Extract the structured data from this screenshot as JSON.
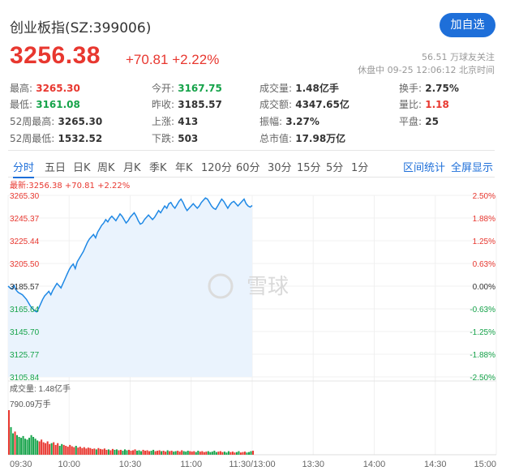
{
  "header": {
    "title": "创业板指(SZ:399006)",
    "add_label": "加自选",
    "price": "3256.38",
    "change": "+70.81 +2.22%",
    "followers": "56.51 万球友关注",
    "status": "休盘中 09-25 12:06:12 北京时间"
  },
  "stats": [
    {
      "label": "最高:",
      "value": "3265.30",
      "color": "red"
    },
    {
      "label": "今开:",
      "value": "3167.75",
      "color": "green"
    },
    {
      "label": "成交量:",
      "value": "1.48亿手",
      "color": "dark"
    },
    {
      "label": "换手:",
      "value": "2.75%",
      "color": "dark"
    },
    {
      "label": "最低:",
      "value": "3161.08",
      "color": "green"
    },
    {
      "label": "昨收:",
      "value": "3185.57",
      "color": "dark"
    },
    {
      "label": "成交额:",
      "value": "4347.65亿",
      "color": "dark"
    },
    {
      "label": "量比:",
      "value": "1.18",
      "color": "red"
    },
    {
      "label": "52周最高:",
      "value": "3265.30",
      "color": "dark"
    },
    {
      "label": "上涨:",
      "value": "413",
      "color": "dark"
    },
    {
      "label": "振幅:",
      "value": "3.27%",
      "color": "dark"
    },
    {
      "label": "平盘:",
      "value": "25",
      "color": "dark"
    },
    {
      "label": "52周最低:",
      "value": "1532.52",
      "color": "dark"
    },
    {
      "label": "下跌:",
      "value": "503",
      "color": "dark"
    },
    {
      "label": "总市值:",
      "value": "17.98万亿",
      "color": "dark"
    }
  ],
  "tabs": [
    "分时",
    "五日",
    "日K",
    "周K",
    "月K",
    "季K",
    "年K",
    "120分",
    "60分",
    "30分",
    "15分",
    "5分",
    "1分"
  ],
  "tab_actions": [
    "区间统计",
    "全屏显示"
  ],
  "chart_legend": "最新:3256.38 +70.81 +2.22%",
  "watermark": "雪球",
  "volume_label": "成交量: 1.48亿手",
  "volume_max": "790.09万手",
  "chart_data": {
    "type": "line",
    "y_ticks_left": [
      "3265.30",
      "3245.37",
      "3225.44",
      "3205.50",
      "3185.57",
      "3165.64",
      "3145.70",
      "3125.77",
      "3105.84"
    ],
    "y_ticks_right": [
      "2.50%",
      "1.88%",
      "1.25%",
      "0.63%",
      "0.00%",
      "-0.63%",
      "-1.25%",
      "-1.88%",
      "-2.50%"
    ],
    "x_ticks": [
      "09:30",
      "10:00",
      "10:30",
      "11:00",
      "11:30/13:00",
      "13:30",
      "14:00",
      "14:30",
      "15:00"
    ],
    "ylim": [
      3105.84,
      3265.3
    ],
    "prices": [
      3185.6,
      3184,
      3183,
      3186,
      3182,
      3180,
      3179,
      3178,
      3176,
      3174,
      3171,
      3168,
      3166,
      3164,
      3163,
      3166,
      3170,
      3174,
      3177,
      3179,
      3181,
      3178,
      3182,
      3185,
      3188,
      3186,
      3184,
      3188,
      3192,
      3196,
      3200,
      3203,
      3205,
      3201,
      3207,
      3210,
      3213,
      3216,
      3220,
      3224,
      3227,
      3229,
      3231,
      3228,
      3233,
      3236,
      3239,
      3241,
      3244,
      3242,
      3245,
      3247,
      3245,
      3243,
      3246,
      3249,
      3247,
      3244,
      3241,
      3243,
      3246,
      3248,
      3250,
      3247,
      3243,
      3240,
      3241,
      3244,
      3246,
      3248,
      3246,
      3244,
      3246,
      3249,
      3252,
      3250,
      3253,
      3256,
      3254,
      3258,
      3259,
      3256,
      3254,
      3257,
      3260,
      3262,
      3259,
      3255,
      3252,
      3254,
      3256,
      3258,
      3256,
      3254,
      3256,
      3259,
      3261,
      3263,
      3262,
      3259,
      3256,
      3254,
      3253,
      3256,
      3259,
      3262,
      3260,
      3257,
      3254,
      3257,
      3259,
      3260,
      3258,
      3256,
      3258,
      3260,
      3262,
      3258,
      3256,
      3255,
      3256.38
    ],
    "volumes": [
      100,
      62,
      48,
      52,
      44,
      40,
      38,
      42,
      36,
      34,
      38,
      44,
      40,
      36,
      32,
      30,
      34,
      28,
      26,
      30,
      24,
      26,
      28,
      22,
      26,
      20,
      24,
      22,
      20,
      18,
      22,
      19,
      17,
      20,
      16,
      18,
      15,
      17,
      14,
      16,
      15,
      13,
      14,
      12,
      15,
      13,
      12,
      14,
      11,
      12,
      10,
      13,
      11,
      12,
      10,
      11,
      9,
      12,
      10,
      11,
      9,
      10,
      12,
      9,
      10,
      8,
      11,
      9,
      10,
      8,
      9,
      11,
      8,
      9,
      10,
      8,
      9,
      7,
      10,
      8,
      9,
      7,
      8,
      9,
      7,
      10,
      8,
      7,
      9,
      8,
      7,
      8,
      6,
      9,
      7,
      8,
      6,
      7,
      8,
      6,
      7,
      9,
      6,
      7,
      8,
      6,
      7,
      5,
      8,
      6,
      7,
      5,
      6,
      8,
      5,
      6,
      7,
      5,
      6,
      8,
      9
    ]
  }
}
